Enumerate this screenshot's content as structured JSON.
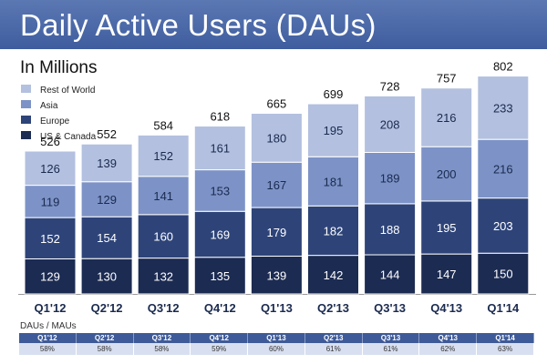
{
  "title": "Daily Active Users (DAUs)",
  "subtitle": "In Millions",
  "colors": {
    "us_canada": "#1c2b52",
    "europe": "#2e4479",
    "asia": "#7d93c7",
    "rest_of_world": "#b3c0df",
    "title_bar": "#4a68a8"
  },
  "chart_data": {
    "type": "bar",
    "stacked": true,
    "categories": [
      "Q1'12",
      "Q2'12",
      "Q3'12",
      "Q4'12",
      "Q1'13",
      "Q2'13",
      "Q3'13",
      "Q4'13",
      "Q1'14"
    ],
    "series": [
      {
        "name": "US & Canada",
        "values": [
          129,
          130,
          132,
          135,
          139,
          142,
          144,
          147,
          150
        ]
      },
      {
        "name": "Europe",
        "values": [
          152,
          154,
          160,
          169,
          179,
          182,
          188,
          195,
          203
        ]
      },
      {
        "name": "Asia",
        "values": [
          119,
          129,
          141,
          153,
          167,
          181,
          189,
          200,
          216
        ]
      },
      {
        "name": "Rest of World",
        "values": [
          126,
          139,
          152,
          161,
          180,
          195,
          208,
          216,
          233
        ]
      }
    ],
    "totals": [
      526,
      552,
      584,
      618,
      665,
      699,
      728,
      757,
      802
    ],
    "legend_order": [
      "Rest of World",
      "Asia",
      "Europe",
      "US & Canada"
    ],
    "legend": "top-left",
    "ylim": [
      0,
      840
    ],
    "grid": false
  },
  "ratio_table": {
    "label": "DAUs / MAUs",
    "headers": [
      "Q1'12",
      "Q2'12",
      "Q3'12",
      "Q4'12",
      "Q1'13",
      "Q2'13",
      "Q3'13",
      "Q4'13",
      "Q1'14"
    ],
    "values": [
      "58%",
      "58%",
      "58%",
      "59%",
      "60%",
      "61%",
      "61%",
      "62%",
      "63%"
    ]
  }
}
